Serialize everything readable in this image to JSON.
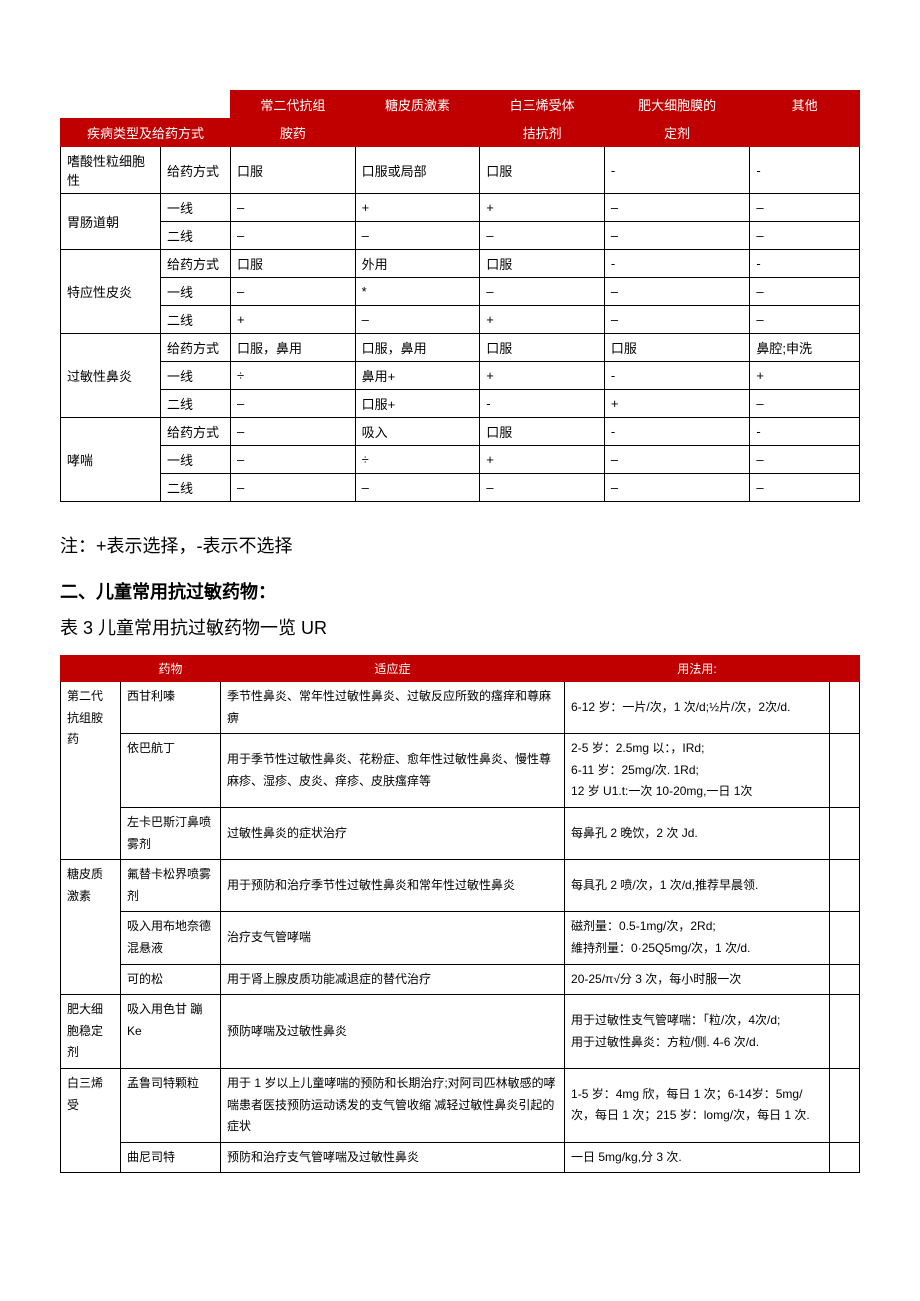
{
  "table1": {
    "header_row1": [
      "",
      "常二代抗组",
      "糖皮质激素",
      "白三烯受体",
      "肥大细胞膜的",
      "其他"
    ],
    "header_row2_label": "疾病类型及给药方式",
    "header_row2": [
      "胺药",
      "",
      "拮抗剂",
      "定剂",
      ""
    ],
    "groups": [
      {
        "disease": "嗜酸性粒细胞性",
        "rows": [
          [
            "给药方式",
            "口服",
            "口服或局部",
            "口服",
            "-",
            "-"
          ]
        ]
      },
      {
        "disease": "胃肠道朝",
        "rows": [
          [
            "一线",
            "–",
            "+",
            "+",
            "–",
            "–"
          ],
          [
            "二线",
            "–",
            "–",
            "–",
            "–",
            "–"
          ]
        ]
      },
      {
        "disease": "特应性皮炎",
        "rows": [
          [
            "给药方式",
            "口服",
            "外用",
            "口服",
            "-",
            "-"
          ],
          [
            "一线",
            "–",
            "*",
            "–",
            "–",
            "–"
          ],
          [
            "二线",
            "+",
            "–",
            "+",
            "–",
            "–"
          ]
        ]
      },
      {
        "disease": "过敏性鼻炎",
        "rows": [
          [
            "给药方式",
            "口服，鼻用",
            "口服，鼻用",
            "口服",
            "口服",
            "鼻腔;申洗"
          ],
          [
            "一线",
            "÷",
            "鼻用+",
            "+",
            "-",
            "+"
          ],
          [
            "二线",
            "–",
            "口服+",
            "-",
            "+",
            "–"
          ]
        ]
      },
      {
        "disease": "哮喘",
        "rows": [
          [
            "给药方式",
            "–",
            "吸入",
            "口服",
            "-",
            "-"
          ],
          [
            "一线",
            "–",
            "÷",
            "+",
            "–",
            "–"
          ],
          [
            "二线",
            "–",
            "–",
            "–",
            "–",
            "–"
          ]
        ]
      }
    ]
  },
  "note_text": "注：+表示选择，-表示不选择",
  "section2_title": "二、儿童常用抗过敏药物：",
  "table2_caption": "表 3 儿童常用抗过敏药物一览 UR",
  "table2": {
    "headers": [
      "",
      "药物",
      "适应症",
      "用法用:"
    ],
    "groups": [
      {
        "cat": "第二代抗组胺药",
        "rows": [
          {
            "drug": "西甘利嗪",
            "ind": "季节性鼻炎、常年性过敏性鼻炎、过敏反应所致的瘙痒和尊麻痹",
            "use": "6-12 岁：一片/次，1 次/d;½片/次，2次/d."
          },
          {
            "drug": "依巴航丁",
            "ind": "用于季节性过敏性鼻炎、花粉症、愈年性过敏性鼻炎、慢性尊麻疹、湿疹、皮炎、痒疹、皮肤瘙痒等",
            "use": "2-5 岁：2.5mg 以：，IRd;\n6-11 岁：25mg/次. 1Rd;\n12 岁 U1.t:一次 10-20mg,一日 1次"
          },
          {
            "drug": "左卡巴斯汀鼻喷雾剂",
            "ind": "过敏性鼻炎的症状治疗",
            "use": "每鼻孔 2 晚饮，2 次 Jd."
          }
        ]
      },
      {
        "cat": "糖皮质激素",
        "rows": [
          {
            "drug": "氟替卡松界喷雾剂",
            "ind": "用于预防和治疗季节性过敏性鼻炎和常年性过敏性鼻炎",
            "use": "每具孔 2 喷/次，1 次/d,推荐早晨领."
          },
          {
            "drug": "吸入用布地奈德混悬液",
            "ind": "治疗支气管哮喘",
            "use": "磁剂量：0.5-1mg/次，2Rd;\n維持剂量：0·25Q5mg/次，1 次/d."
          },
          {
            "drug": "可的松",
            "ind": "用于肾上腺皮质功能减退症的替代治疗",
            "use": "20-25/π√分 3 次，每小时服一次"
          }
        ]
      },
      {
        "cat": "肥大细胞稳定剂",
        "rows": [
          {
            "drug": "吸入用色甘 蹦 Ke",
            "ind": "预防哮喘及过敏性鼻炎",
            "use": "用于过敏性支气管哮喘：「粒/次，4次/d;\n用于过敏性鼻炎：方粒/侧. 4-6 次/d."
          }
        ]
      },
      {
        "cat": "白三烯受",
        "rows": [
          {
            "drug": "孟鲁司特颗粒",
            "ind": "用于 1 岁以上儿童哮喘的预防和长期治疗;对阿司匹林敏感的哮喘患者医技预防运动诱发的支气管收缩 减轻过敏性鼻炎引起的症状",
            "use": "1-5 岁：4mg 欣，每日 1 次；6-14岁：5mg/次，每日 1 次；215 岁：lomg/次，每日 1 次."
          },
          {
            "drug": "曲尼司特",
            "ind": "预防和治疗支气管哮喘及过敏性鼻炎",
            "use": "一日 5mg/kg,分 3 次."
          }
        ]
      }
    ]
  }
}
